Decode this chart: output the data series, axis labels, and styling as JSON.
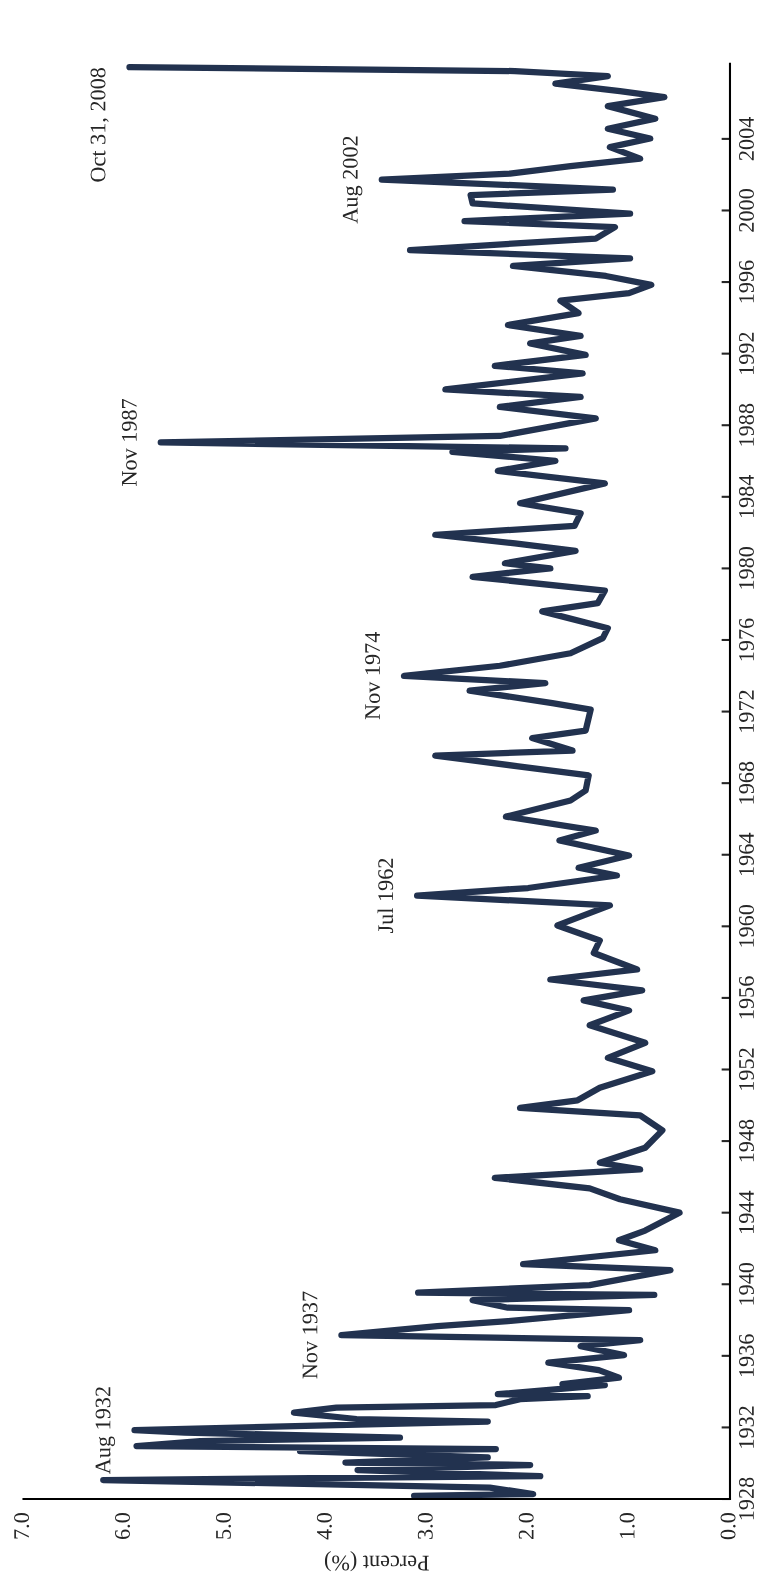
{
  "chart_data": {
    "type": "line",
    "xlabel": "Percent (%)",
    "x": [
      3.13,
      1.95,
      2.38,
      6.21,
      1.88,
      3.69,
      1.98,
      3.81,
      2.4,
      4.26,
      2.32,
      5.88,
      5.25,
      3.27,
      5.4,
      5.9,
      3.9,
      2.4,
      3.7,
      4.32,
      3.9,
      2.32,
      2.08,
      1.41,
      2.3,
      1.24,
      1.66,
      1.1,
      1.3,
      1.8,
      1.05,
      1.48,
      0.89,
      3.85,
      2.9,
      2.2,
      1.0,
      2.2,
      2.55,
      0.75,
      3.09,
      1.39,
      0.59,
      2.05,
      0.74,
      1.1,
      0.84,
      0.5,
      1.09,
      1.39,
      2.33,
      0.89,
      1.29,
      0.84,
      0.67,
      0.89,
      2.08,
      1.51,
      1.29,
      0.77,
      1.21,
      0.84,
      1.39,
      1.0,
      1.45,
      0.87,
      1.78,
      0.92,
      1.35,
      1.29,
      1.71,
      1.19,
      3.1,
      2.0,
      1.12,
      1.5,
      1.0,
      1.69,
      1.33,
      2.22,
      1.58,
      1.43,
      1.4,
      2.92,
      1.56,
      1.96,
      1.43,
      1.38,
      1.76,
      2.58,
      1.83,
      3.23,
      2.28,
      1.58,
      1.26,
      1.21,
      1.86,
      1.31,
      1.24,
      2.55,
      1.78,
      2.23,
      1.53,
      2.13,
      2.92,
      1.54,
      1.48,
      2.08,
      1.24,
      2.3,
      1.73,
      2.75,
      1.63,
      5.64,
      2.28,
      1.33,
      2.28,
      1.48,
      2.82,
      1.46,
      2.33,
      1.43,
      1.98,
      1.48,
      2.2,
      1.5,
      1.68,
      1.0,
      0.78,
      1.23,
      2.15,
      0.99,
      3.17,
      1.33,
      1.14,
      2.63,
      0.99,
      2.55,
      2.57,
      1.16,
      3.45,
      2.18,
      1.58,
      0.89,
      1.19,
      0.79,
      1.21,
      0.74,
      1.21,
      0.65,
      1.09,
      1.73,
      1.21,
      2.13,
      5.95
    ],
    "series": [
      {
        "color": "#22324f",
        "values": [
          1928.17,
          1928.28,
          1928.64,
          1929.06,
          1929.28,
          1929.62,
          1929.9,
          1930.04,
          1930.32,
          1930.68,
          1930.79,
          1930.96,
          1931.24,
          1931.43,
          1931.71,
          1931.85,
          1932.13,
          1932.33,
          1932.47,
          1932.83,
          1933.11,
          1933.25,
          1933.58,
          1933.75,
          1933.86,
          1934.37,
          1934.42,
          1934.78,
          1935.2,
          1935.62,
          1936.04,
          1936.54,
          1936.88,
          1937.16,
          1937.66,
          1937.94,
          1938.55,
          1938.69,
          1939.11,
          1939.4,
          1939.53,
          1939.95,
          1940.79,
          1941.12,
          1941.9,
          1942.46,
          1943.0,
          1944.0,
          1944.75,
          1945.36,
          1945.95,
          1946.42,
          1946.79,
          1947.63,
          1948.6,
          1949.44,
          1949.86,
          1950.28,
          1950.98,
          1951.9,
          1952.65,
          1953.49,
          1954.47,
          1955.3,
          1955.86,
          1956.42,
          1957.03,
          1957.59,
          1958.51,
          1959.21,
          1960.05,
          1961.17,
          1961.72,
          1962.14,
          1962.84,
          1963.27,
          1963.96,
          1964.8,
          1965.35,
          1966.13,
          1967.03,
          1967.59,
          1968.43,
          1969.54,
          1969.82,
          1970.52,
          1970.94,
          1972.11,
          1972.47,
          1973.17,
          1973.59,
          1974.0,
          1974.56,
          1975.26,
          1976.1,
          1976.66,
          1977.6,
          1978.06,
          1978.76,
          1979.53,
          1980.0,
          1980.29,
          1980.98,
          1981.4,
          1981.88,
          1982.38,
          1983.08,
          1983.64,
          1984.75,
          1985.45,
          1986.01,
          1986.51,
          1986.71,
          1987.04,
          1987.4,
          1988.38,
          1989.02,
          1989.58,
          1990.0,
          1990.9,
          1991.32,
          1991.93,
          1992.57,
          1992.99,
          1993.6,
          1994.26,
          1994.96,
          1995.38,
          1995.84,
          1996.34,
          1996.9,
          1997.32,
          1997.79,
          1998.43,
          1999.07,
          1999.41,
          1999.83,
          2000.39,
          2000.86,
          2001.17,
          2001.73,
          2002.06,
          2002.48,
          2002.9,
          2003.54,
          2004.02,
          2004.57,
          2005.13,
          2005.83,
          2006.33,
          2006.67,
          2007.09,
          2007.51,
          2007.79,
          2008.01
        ]
      }
    ],
    "xlim": [
      7,
      0
    ],
    "xticks": [
      {
        "value": 7,
        "label": "7.0"
      },
      {
        "value": 6,
        "label": "6.0"
      },
      {
        "value": 5,
        "label": "5.0"
      },
      {
        "value": 4,
        "label": "4.0"
      },
      {
        "value": 3,
        "label": "3.0"
      },
      {
        "value": 2,
        "label": "2.0"
      },
      {
        "value": 1,
        "label": "1.0"
      },
      {
        "value": 0,
        "label": "0.0"
      }
    ],
    "ylim": [
      1928,
      2008.2
    ],
    "yticks": [
      1928,
      1932,
      1936,
      1940,
      1944,
      1948,
      1952,
      1956,
      1960,
      1964,
      1968,
      1972,
      1976,
      1980,
      1984,
      1988,
      1992,
      1996,
      2000,
      2004
    ],
    "annotations": [
      {
        "text": "Aug 1932",
        "x": 5.9,
        "y": 1931.85
      },
      {
        "text": "Nov 1937",
        "x": 3.85,
        "y": 1937.16
      },
      {
        "text": "Jul 1962",
        "x": 3.1,
        "y": 1961.72
      },
      {
        "text": "Nov 1974",
        "x": 3.23,
        "y": 1974.0
      },
      {
        "text": "Nov 1987",
        "x": 5.64,
        "y": 1987.04
      },
      {
        "text": "Aug 2002",
        "x": 3.45,
        "y": 2001.73
      },
      {
        "text": "Oct 31, 2008",
        "x": 5.95,
        "y": 2008.01
      }
    ],
    "grid": false,
    "legend": false,
    "marker": "none",
    "line_style": "solid"
  }
}
